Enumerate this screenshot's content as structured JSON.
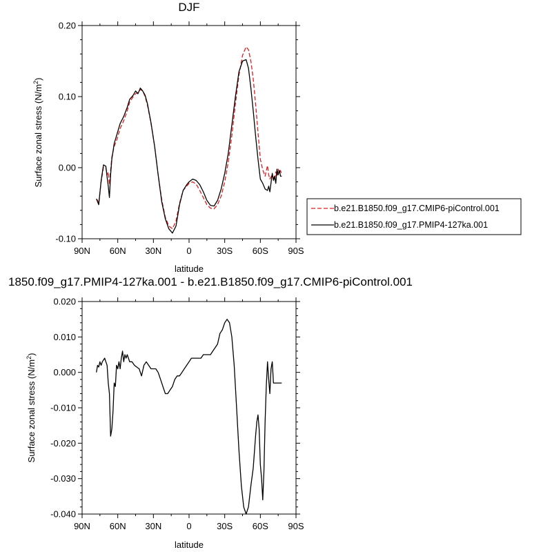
{
  "colors": {
    "control": "#e41a1c",
    "pmip": "#000000"
  },
  "legend": {
    "items": [
      {
        "label": "b.e21.B1850.f09_g17.CMIP6-piControl.001",
        "color": "#e41a1c",
        "dash": "dashed"
      },
      {
        "label": "b.e21.B1850.f09_g17.PMIP4-127ka.001",
        "color": "#000000",
        "dash": "solid"
      }
    ]
  },
  "chart_data": [
    {
      "type": "line",
      "title": "DJF",
      "xlabel": "latitude",
      "ylabel": "Surface zonal stress (N/m",
      "ylabel_sup": "2",
      "ylabel_close": ")",
      "xlim": [
        90,
        -90
      ],
      "ylim": [
        -0.1,
        0.2
      ],
      "xticks": [
        90,
        60,
        30,
        0,
        -30,
        -60,
        -90
      ],
      "xtick_labels": [
        "90N",
        "60N",
        "30N",
        "0",
        "30S",
        "60S",
        "90S"
      ],
      "yticks": [
        -0.1,
        0.0,
        0.1,
        0.2
      ],
      "ytick_labels": [
        "-0.10",
        "0.00",
        "0.10",
        "0.20"
      ],
      "legend": "right",
      "series": [
        {
          "name": "b.e21.B1850.f09_g17.CMIP6-piControl.001",
          "style": "dashed",
          "x": [
            78,
            77,
            76,
            74,
            72,
            70,
            69,
            68,
            67,
            66,
            65,
            63,
            61,
            58,
            55,
            52,
            50,
            47,
            45,
            43,
            41,
            39,
            37,
            35,
            32,
            29,
            26,
            23,
            20,
            17,
            14,
            11,
            8,
            5,
            2,
            0,
            -3,
            -6,
            -9,
            -12,
            -15,
            -18,
            -21,
            -24,
            -27,
            -30,
            -33,
            -36,
            -39,
            -42,
            -45,
            -48,
            -50,
            -52,
            -54,
            -56,
            -58,
            -60,
            -62,
            -64,
            -66,
            -67,
            -68,
            -70,
            -71,
            -72,
            -73,
            -74,
            -75,
            -76,
            -77,
            -78
          ],
          "y": [
            -0.044,
            -0.046,
            -0.05,
            -0.02,
            0.001,
            0.0,
            -0.01,
            -0.006,
            -0.024,
            -0.004,
            0.015,
            0.03,
            0.038,
            0.055,
            0.066,
            0.08,
            0.092,
            0.1,
            0.104,
            0.106,
            0.11,
            0.108,
            0.1,
            0.088,
            0.062,
            0.03,
            -0.01,
            -0.045,
            -0.07,
            -0.082,
            -0.086,
            -0.075,
            -0.05,
            -0.032,
            -0.026,
            -0.022,
            -0.02,
            -0.023,
            -0.032,
            -0.042,
            -0.052,
            -0.057,
            -0.058,
            -0.052,
            -0.04,
            -0.02,
            0.008,
            0.045,
            0.09,
            0.13,
            0.158,
            0.17,
            0.166,
            0.15,
            0.125,
            0.09,
            0.05,
            0.012,
            -0.003,
            -0.012,
            0.003,
            -0.01,
            -0.016,
            -0.01,
            -0.014,
            -0.018,
            -0.006,
            -0.012,
            -0.002,
            -0.008,
            -0.004,
            -0.01
          ]
        },
        {
          "name": "b.e21.B1850.f09_g17.PMIP4-127ka.001",
          "style": "solid",
          "x": [
            78,
            77,
            76,
            74,
            72,
            70,
            69,
            68,
            67,
            66,
            65,
            63,
            61,
            58,
            55,
            52,
            50,
            47,
            45,
            43,
            41,
            39,
            37,
            35,
            32,
            29,
            26,
            23,
            20,
            17,
            14,
            11,
            8,
            5,
            2,
            0,
            -3,
            -6,
            -9,
            -12,
            -15,
            -18,
            -21,
            -24,
            -27,
            -30,
            -33,
            -36,
            -39,
            -42,
            -45,
            -48,
            -50,
            -52,
            -54,
            -56,
            -58,
            -60,
            -62,
            -64,
            -66,
            -67,
            -68,
            -70,
            -71,
            -72,
            -73,
            -74,
            -75,
            -76,
            -77,
            -78
          ],
          "y": [
            -0.044,
            -0.048,
            -0.052,
            -0.018,
            0.004,
            0.002,
            -0.013,
            -0.026,
            -0.042,
            -0.01,
            0.012,
            0.034,
            0.045,
            0.062,
            0.072,
            0.085,
            0.096,
            0.102,
            0.108,
            0.104,
            0.112,
            0.108,
            0.102,
            0.09,
            0.063,
            0.03,
            -0.01,
            -0.048,
            -0.072,
            -0.086,
            -0.092,
            -0.082,
            -0.052,
            -0.032,
            -0.024,
            -0.02,
            -0.016,
            -0.018,
            -0.024,
            -0.034,
            -0.046,
            -0.053,
            -0.054,
            -0.046,
            -0.03,
            -0.008,
            0.02,
            0.06,
            0.1,
            0.135,
            0.15,
            0.152,
            0.14,
            0.112,
            0.08,
            0.045,
            0.012,
            -0.016,
            -0.022,
            -0.03,
            -0.032,
            -0.026,
            -0.034,
            -0.008,
            -0.018,
            -0.012,
            -0.022,
            -0.002,
            -0.01,
            -0.004,
            -0.012,
            -0.012
          ]
        }
      ]
    },
    {
      "type": "line",
      "title": "1850.f09_g17.PMIP4-127ka.001 - b.e21.B1850.f09_g17.CMIP6-piControl.001",
      "xlabel": "latitude",
      "ylabel": "Surface zonal stress (N/m",
      "ylabel_sup": "2",
      "ylabel_close": ")",
      "xlim": [
        90,
        -90
      ],
      "ylim": [
        -0.04,
        0.02
      ],
      "xticks": [
        90,
        60,
        30,
        0,
        -30,
        -60,
        -90
      ],
      "xtick_labels": [
        "90N",
        "60N",
        "30N",
        "0",
        "30S",
        "60S",
        "90S"
      ],
      "yticks": [
        -0.04,
        -0.03,
        -0.02,
        -0.01,
        0.0,
        0.01,
        0.02
      ],
      "ytick_labels": [
        "-0.040",
        "-0.030",
        "-0.020",
        "-0.010",
        "0.000",
        "0.010",
        "0.020"
      ],
      "series": [
        {
          "style": "solid",
          "x": [
            78,
            77,
            76,
            75,
            74,
            73,
            72,
            71,
            70,
            69,
            68,
            67,
            66,
            65,
            64,
            63,
            62,
            61,
            60,
            59,
            58,
            57,
            56,
            55,
            54,
            53,
            52,
            50,
            48,
            46,
            44,
            42,
            40,
            38,
            36,
            34,
            32,
            30,
            28,
            26,
            24,
            22,
            20,
            18,
            16,
            14,
            12,
            10,
            8,
            6,
            4,
            2,
            0,
            -2,
            -4,
            -6,
            -8,
            -10,
            -12,
            -14,
            -16,
            -18,
            -20,
            -22,
            -24,
            -26,
            -28,
            -30,
            -32,
            -34,
            -36,
            -38,
            -40,
            -42,
            -44,
            -46,
            -48,
            -50,
            -52,
            -54,
            -56,
            -57,
            -58,
            -59,
            -60,
            -61,
            -62,
            -63,
            -64,
            -65,
            -66,
            -67,
            -68,
            -69,
            -70,
            -71,
            -72,
            -73,
            -74,
            -75,
            -76,
            -77,
            -78
          ],
          "y": [
            0.0,
            0.002,
            0.0015,
            0.003,
            0.002,
            0.003,
            0.0035,
            0.004,
            0.003,
            0.002,
            -0.003,
            -0.006,
            -0.018,
            -0.016,
            -0.011,
            -0.003,
            -0.004,
            0.002,
            0.001,
            0.003,
            0.001,
            0.004,
            0.006,
            0.003,
            0.005,
            0.004,
            0.005,
            0.003,
            0.003,
            0.002,
            0.0015,
            0.001,
            -0.001,
            0.002,
            0.003,
            0.002,
            0.001,
            0.001,
            0.001,
            0.0,
            -0.002,
            -0.004,
            -0.006,
            -0.006,
            -0.005,
            -0.004,
            -0.002,
            -0.001,
            -0.001,
            0.0,
            0.001,
            0.002,
            0.003,
            0.004,
            0.004,
            0.004,
            0.004,
            0.004,
            0.005,
            0.005,
            0.005,
            0.005,
            0.006,
            0.007,
            0.008,
            0.011,
            0.012,
            0.014,
            0.015,
            0.014,
            0.01,
            0.002,
            -0.01,
            -0.022,
            -0.032,
            -0.038,
            -0.04,
            -0.038,
            -0.032,
            -0.027,
            -0.018,
            -0.014,
            -0.012,
            -0.016,
            -0.026,
            -0.03,
            -0.036,
            -0.028,
            -0.014,
            -0.004,
            0.003,
            -0.002,
            -0.006,
            0.001,
            0.003,
            -0.003,
            -0.003,
            -0.003,
            -0.003,
            -0.003,
            -0.003,
            -0.003,
            -0.003
          ]
        }
      ]
    }
  ]
}
